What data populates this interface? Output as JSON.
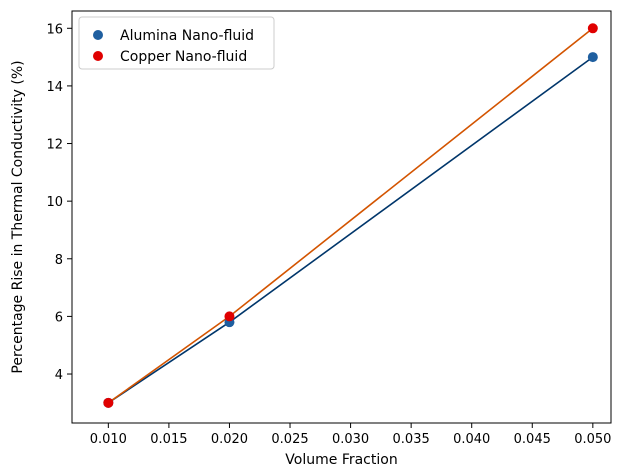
{
  "chart_data": {
    "type": "line",
    "title": "",
    "xlabel": "Volume Fraction",
    "ylabel": "Percentage Rise in Thermal Conductivity (%)",
    "xlim": [
      0.007,
      0.0515
    ],
    "ylim": [
      2.3,
      16.6
    ],
    "x_ticks": [
      "0.010",
      "0.015",
      "0.020",
      "0.025",
      "0.030",
      "0.035",
      "0.040",
      "0.045",
      "0.050"
    ],
    "x_tick_values": [
      0.01,
      0.015,
      0.02,
      0.025,
      0.03,
      0.035,
      0.04,
      0.045,
      0.05
    ],
    "y_ticks": [
      "4",
      "6",
      "8",
      "10",
      "12",
      "14",
      "16"
    ],
    "y_tick_values": [
      4,
      6,
      8,
      10,
      12,
      14,
      16
    ],
    "grid": false,
    "legend_position": "top-left",
    "series": [
      {
        "name": "Alumina Nano-fluid",
        "x": [
          0.01,
          0.02,
          0.05
        ],
        "y": [
          3.0,
          5.8,
          15.0
        ],
        "marker_color": "#1f5fa0",
        "line_color": "#00366b"
      },
      {
        "name": "Copper Nano-fluid",
        "x": [
          0.01,
          0.02,
          0.05
        ],
        "y": [
          3.0,
          6.0,
          16.0
        ],
        "marker_color": "#e00000",
        "line_color": "#d35400"
      }
    ]
  }
}
